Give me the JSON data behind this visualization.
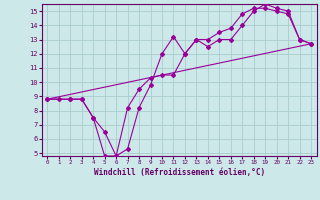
{
  "bg_color": "#cce8e8",
  "grid_color": "#aacccc",
  "line_color": "#990099",
  "marker_color": "#990099",
  "xlabel": "Windchill (Refroidissement éolien,°C)",
  "xlabel_color": "#660066",
  "tick_color": "#660066",
  "xlim": [
    -0.5,
    23.5
  ],
  "ylim": [
    4.8,
    15.5
  ],
  "xticks": [
    0,
    1,
    2,
    3,
    4,
    5,
    6,
    7,
    8,
    9,
    10,
    11,
    12,
    13,
    14,
    15,
    16,
    17,
    18,
    19,
    20,
    21,
    22,
    23
  ],
  "yticks": [
    5,
    6,
    7,
    8,
    9,
    10,
    11,
    12,
    13,
    14,
    15
  ],
  "line1_x": [
    0,
    1,
    2,
    3,
    4,
    5,
    6,
    7,
    8,
    9,
    10,
    11,
    12,
    13,
    14,
    15,
    16,
    17,
    18,
    19,
    20,
    21,
    22,
    23
  ],
  "line1_y": [
    8.8,
    8.8,
    8.8,
    8.8,
    7.5,
    6.5,
    4.8,
    8.2,
    9.5,
    10.3,
    10.5,
    10.5,
    12.0,
    13.0,
    13.0,
    13.5,
    13.8,
    14.8,
    15.2,
    15.2,
    15.0,
    14.8,
    13.0,
    12.7
  ],
  "line2_x": [
    0,
    2,
    3,
    4,
    5,
    6,
    7,
    8,
    9,
    10,
    11,
    12,
    13,
    14,
    15,
    16,
    17,
    18,
    19,
    20,
    21,
    22,
    23
  ],
  "line2_y": [
    8.8,
    8.8,
    8.8,
    7.5,
    4.8,
    4.8,
    5.3,
    8.2,
    9.8,
    12.0,
    13.2,
    12.0,
    13.0,
    12.5,
    13.0,
    13.0,
    14.0,
    15.0,
    15.5,
    15.2,
    15.0,
    13.0,
    12.7
  ],
  "line3_x": [
    0,
    23
  ],
  "line3_y": [
    8.8,
    12.7
  ]
}
